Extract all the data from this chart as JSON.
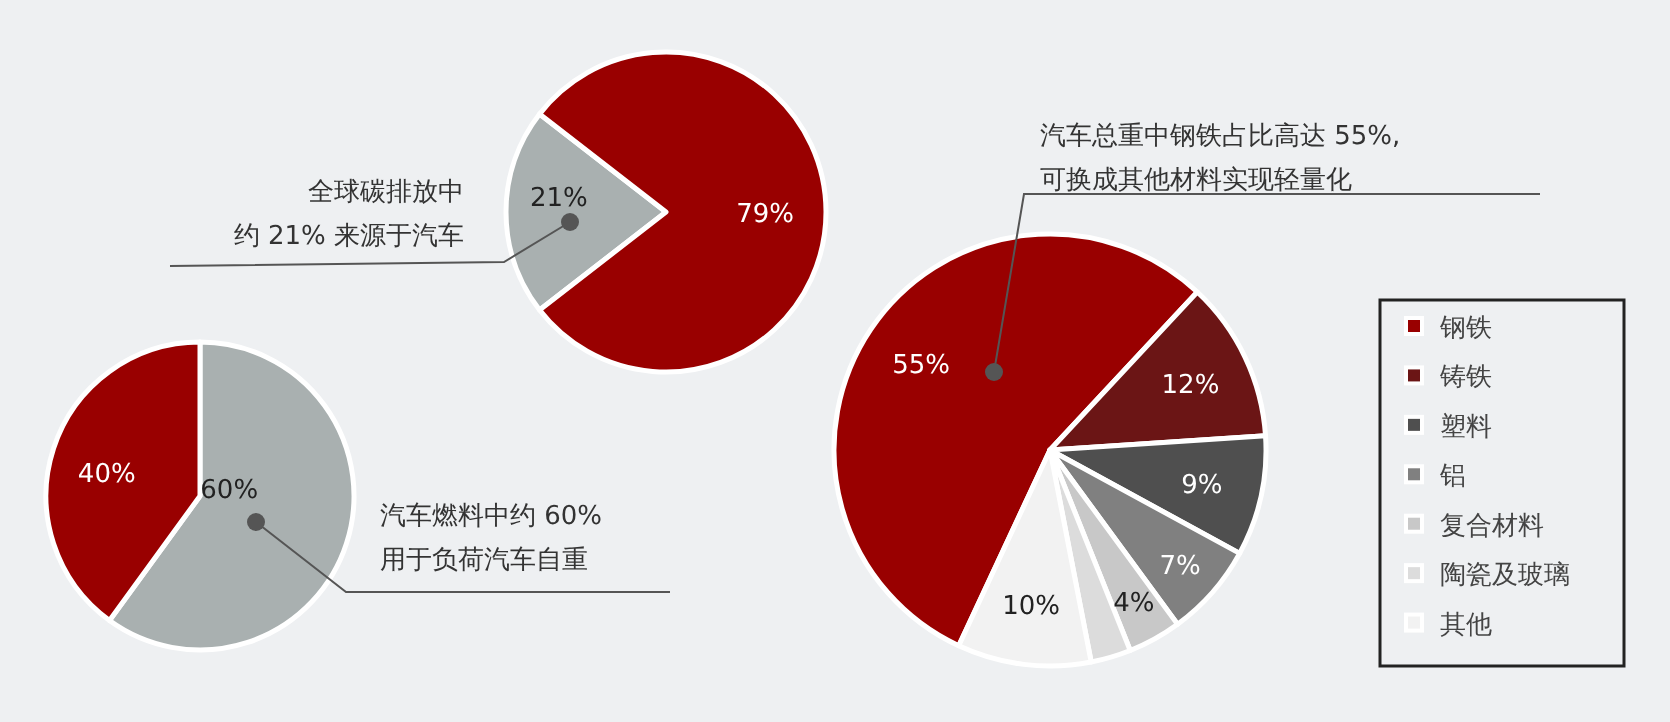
{
  "chart_data": [
    {
      "type": "pie",
      "categories": [
        null,
        null
      ],
      "values": [
        21,
        79
      ],
      "colors": [
        "#a9b0b0",
        "#990000"
      ],
      "value_labels": [
        "21%",
        "79%"
      ],
      "annotations": [
        "全球碳排放中",
        "约 21% 来源于汽车"
      ]
    },
    {
      "type": "pie",
      "categories": [
        null,
        null
      ],
      "values": [
        60,
        40
      ],
      "colors": [
        "#a9b0b0",
        "#990000"
      ],
      "value_labels": [
        "60%",
        "40%"
      ],
      "annotations": [
        "汽车燃料中约 60%",
        "用于负荷汽车自重"
      ]
    },
    {
      "type": "pie",
      "categories": [
        "钢铁",
        "铸铁",
        "塑料",
        "铝",
        "复合材料",
        "陶瓷及玻璃",
        "其他"
      ],
      "values": [
        55,
        12,
        9,
        7,
        4,
        3,
        10
      ],
      "colors": [
        "#990000",
        "#6b1515",
        "#4f4f4f",
        "#808080",
        "#c8c8c8",
        "#dcdcdc",
        "#f2f2f2"
      ],
      "value_labels": [
        "55%",
        "12%",
        "9%",
        "7%",
        "4%",
        null,
        "10%"
      ],
      "legend": "right",
      "annotations": [
        "汽车总重中钢铁占比高达 55%,",
        "可换成其他材料实现轻量化"
      ]
    }
  ]
}
